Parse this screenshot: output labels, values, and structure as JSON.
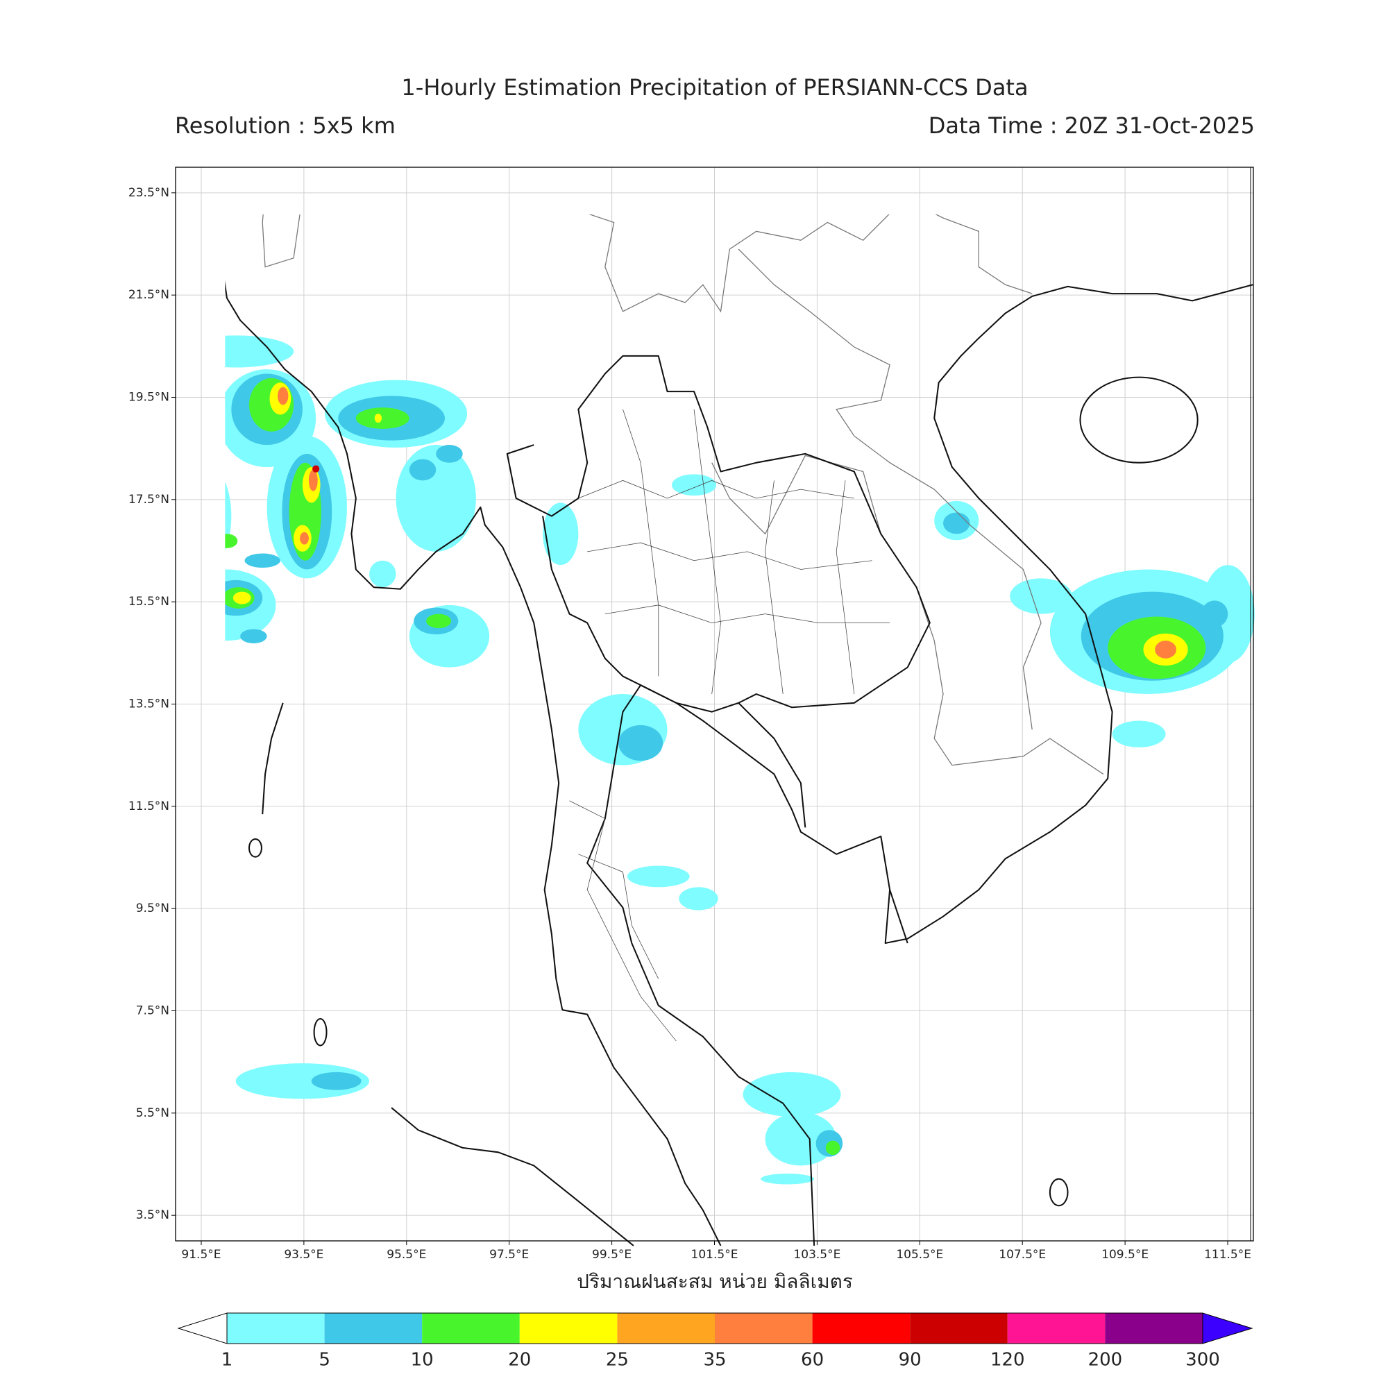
{
  "header": {
    "title": "1-Hourly Estimation Precipitation of PERSIANN-CCS Data",
    "resolution": "Resolution : 5x5 km",
    "data_time": "Data Time : 20Z 31-Oct-2025"
  },
  "map": {
    "lonlim": [
      91,
      112
    ],
    "latlim": [
      3,
      24
    ],
    "lon_ticks": [
      {
        "value": 91.5,
        "label": "91.5°E"
      },
      {
        "value": 93.5,
        "label": "93.5°E"
      },
      {
        "value": 95.5,
        "label": "95.5°E"
      },
      {
        "value": 97.5,
        "label": "97.5°E"
      },
      {
        "value": 99.5,
        "label": "99.5°E"
      },
      {
        "value": 101.5,
        "label": "101.5°E"
      },
      {
        "value": 103.5,
        "label": "103.5°E"
      },
      {
        "value": 105.5,
        "label": "105.5°E"
      },
      {
        "value": 107.5,
        "label": "107.5°E"
      },
      {
        "value": 109.5,
        "label": "109.5°E"
      },
      {
        "value": 111.5,
        "label": "111.5°E"
      }
    ],
    "lat_ticks": [
      {
        "value": 23.5,
        "label": "23.5°N"
      },
      {
        "value": 21.5,
        "label": "21.5°N"
      },
      {
        "value": 19.5,
        "label": "19.5°N"
      },
      {
        "value": 17.5,
        "label": "17.5°N"
      },
      {
        "value": 15.5,
        "label": "15.5°N"
      },
      {
        "value": 13.5,
        "label": "13.5°N"
      },
      {
        "value": 11.5,
        "label": "11.5°N"
      },
      {
        "value": 9.5,
        "label": "9.5°N"
      },
      {
        "value": 7.5,
        "label": "7.5°N"
      },
      {
        "value": 5.5,
        "label": "5.5°N"
      },
      {
        "value": 3.5,
        "label": "3.5°N"
      }
    ],
    "grid": true,
    "x_label": "ปริมาณฝนสะสม หน่วย มิลลิเมตร"
  },
  "colorbar": {
    "bounds": [
      1,
      5,
      10,
      20,
      25,
      35,
      60,
      90,
      120,
      200,
      300
    ],
    "colors": [
      "#7ffcff",
      "#40c8e8",
      "#48f52c",
      "#ffff00",
      "#ffa520",
      "#ff7f3f",
      "#ff0000",
      "#cc0000",
      "#ff1493",
      "#8b008b"
    ],
    "under_color": "#ffffff",
    "over_color": "#3c00ff"
  }
}
